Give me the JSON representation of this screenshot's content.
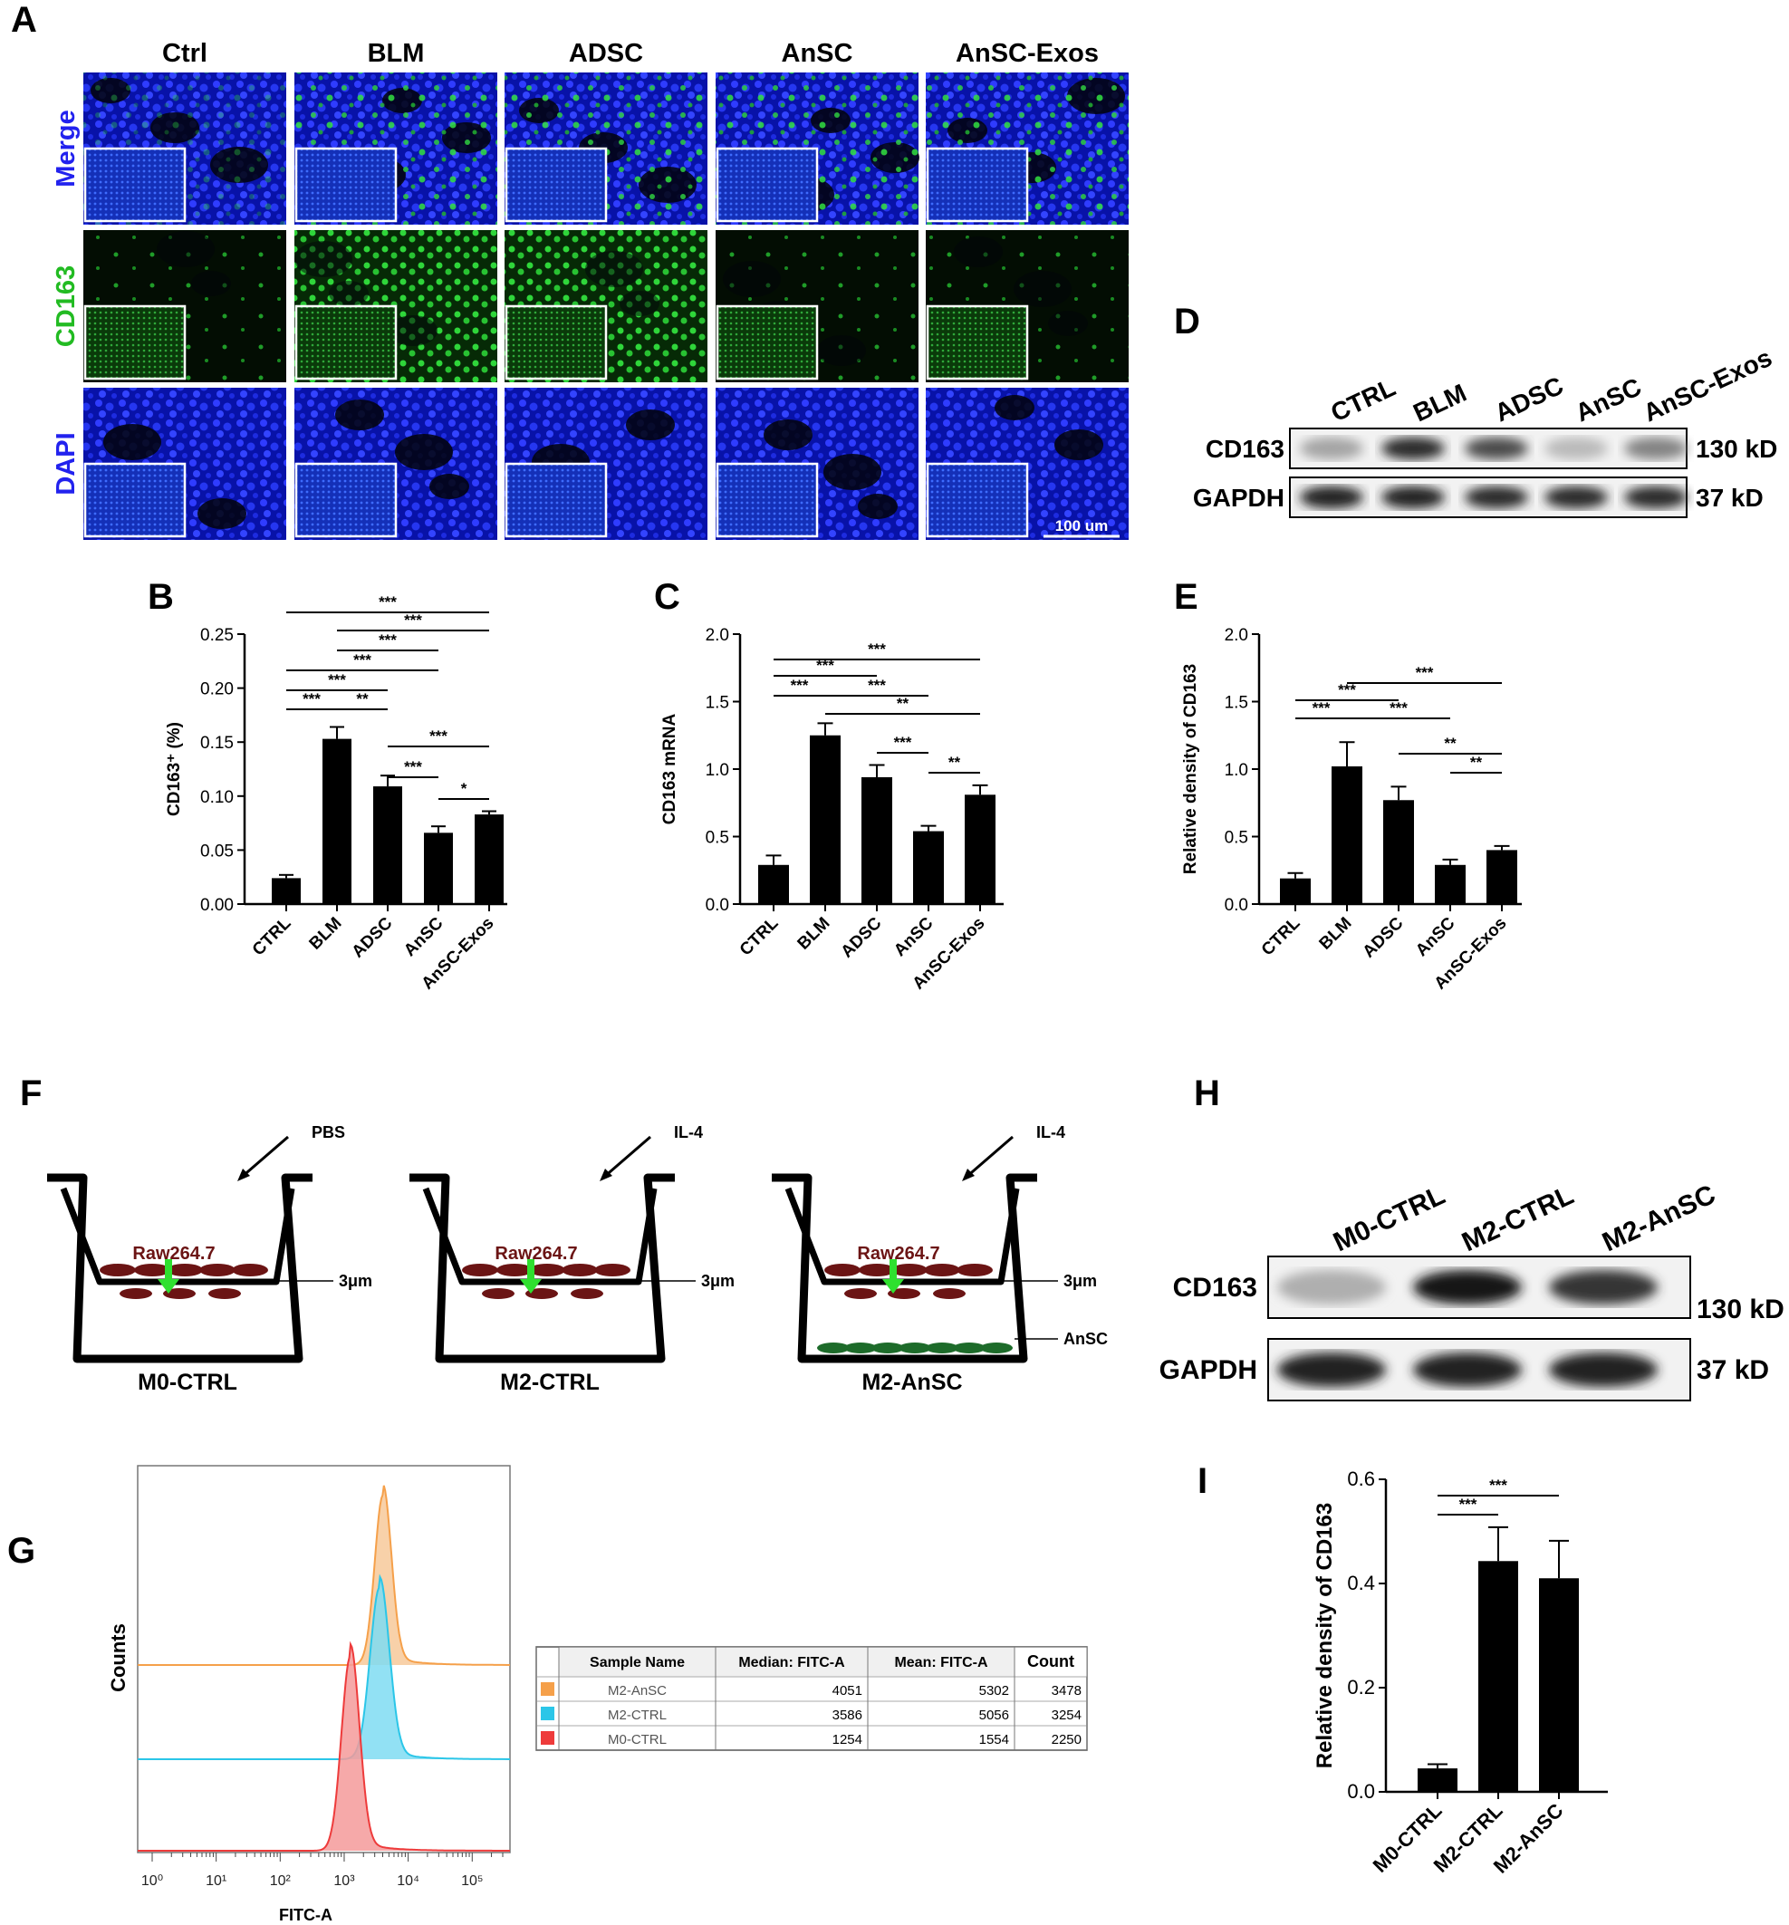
{
  "panel_letters": {
    "A": "A",
    "B": "B",
    "C": "C",
    "D": "D",
    "E": "E",
    "F": "F",
    "G": "G",
    "H": "H",
    "I": "I"
  },
  "microscopy": {
    "columns": [
      "Ctrl",
      "BLM",
      "ADSC",
      "AnSC",
      "AnSC-Exos"
    ],
    "rows": [
      {
        "label": "Merge",
        "color": "#2222ee"
      },
      {
        "label": "CD163",
        "color": "#22bb22"
      },
      {
        "label": "DAPI",
        "color": "#2222ee"
      }
    ],
    "scale_bar": "100 um"
  },
  "western_D": {
    "lanes": [
      "CTRL",
      "BLM",
      "ADSC",
      "AnSC",
      "AnSC-Exos"
    ],
    "rows": [
      {
        "label": "CD163",
        "size": "130 kD",
        "intensity": [
          0.3,
          0.85,
          0.7,
          0.2,
          0.45
        ]
      },
      {
        "label": "GAPDH",
        "size": "37 kD",
        "intensity": [
          0.9,
          0.9,
          0.85,
          0.85,
          0.85
        ]
      }
    ]
  },
  "western_H": {
    "lanes": [
      "M0-CTRL",
      "M2-CTRL",
      "M2-AnSC"
    ],
    "rows": [
      {
        "label": "CD163",
        "size": "130 kD",
        "intensity": [
          0.25,
          0.95,
          0.8
        ]
      },
      {
        "label": "GAPDH",
        "size": "37 kD",
        "intensity": [
          0.9,
          0.9,
          0.9
        ]
      }
    ]
  },
  "transwell": {
    "wells": [
      {
        "name": "M0-CTRL",
        "treatment": "PBS",
        "cell": "Raw264.7",
        "pore": "3μm",
        "lower": ""
      },
      {
        "name": "M2-CTRL",
        "treatment": "IL-4",
        "cell": "Raw264.7",
        "pore": "3μm",
        "lower": ""
      },
      {
        "name": "M2-AnSC",
        "treatment": "IL-4",
        "cell": "Raw264.7",
        "pore": "3μm",
        "lower": "AnSC"
      }
    ]
  },
  "flow_table": {
    "headers": [
      "Sample Name",
      "Median: FITC-A",
      "Mean: FITC-A",
      "Count"
    ],
    "rows": [
      {
        "color": "#f5a04a",
        "name": "M2-AnSC",
        "median": "4051",
        "mean": "5302",
        "count": "3478"
      },
      {
        "color": "#2bc6e8",
        "name": "M2-CTRL",
        "median": "3586",
        "mean": "5056",
        "count": "3254"
      },
      {
        "color": "#ee3b3b",
        "name": "M0-CTRL",
        "median": "1254",
        "mean": "1554",
        "count": "2250"
      }
    ]
  },
  "chart_data": [
    {
      "panel": "B",
      "type": "bar",
      "categories": [
        "CTRL",
        "BLM",
        "ADSC",
        "AnSC",
        "AnSC-Exos"
      ],
      "values": [
        0.024,
        0.153,
        0.109,
        0.066,
        0.083
      ],
      "errors": [
        0.003,
        0.011,
        0.01,
        0.006,
        0.003
      ],
      "ylabel": "CD163⁺ (%)",
      "ylim": [
        0,
        0.25
      ],
      "yticks": [
        "0.00",
        "0.05",
        "0.10",
        "0.15",
        "0.20",
        "0.25"
      ],
      "significance": [
        {
          "from": 0,
          "to": 1,
          "label": "***"
        },
        {
          "from": 1,
          "to": 2,
          "label": "**"
        },
        {
          "from": 3,
          "to": 4,
          "label": "*"
        },
        {
          "from": 2,
          "to": 3,
          "label": "***"
        },
        {
          "from": 2,
          "to": 4,
          "label": "***"
        },
        {
          "from": 0,
          "to": 2,
          "label": "***"
        },
        {
          "from": 0,
          "to": 3,
          "label": "***"
        },
        {
          "from": 1,
          "to": 3,
          "label": "***"
        },
        {
          "from": 1,
          "to": 4,
          "label": "***"
        },
        {
          "from": 0,
          "to": 4,
          "label": "***"
        }
      ]
    },
    {
      "panel": "C",
      "type": "bar",
      "categories": [
        "CTRL",
        "BLM",
        "ADSC",
        "AnSC",
        "AnSC-Exos"
      ],
      "values": [
        0.29,
        1.25,
        0.94,
        0.54,
        0.81
      ],
      "errors": [
        0.07,
        0.09,
        0.09,
        0.04,
        0.07
      ],
      "ylabel": "CD163 mRNA",
      "ylim": [
        0,
        2.0
      ],
      "yticks": [
        "0.0",
        "0.5",
        "1.0",
        "1.5",
        "2.0"
      ],
      "significance": [
        {
          "from": 3,
          "to": 4,
          "label": "**"
        },
        {
          "from": 2,
          "to": 3,
          "label": "***"
        },
        {
          "from": 1,
          "to": 4,
          "label": "**"
        },
        {
          "from": 1,
          "to": 3,
          "label": "***"
        },
        {
          "from": 0,
          "to": 1,
          "label": "***"
        },
        {
          "from": 0,
          "to": 2,
          "label": "***"
        },
        {
          "from": 0,
          "to": 4,
          "label": "***"
        }
      ]
    },
    {
      "panel": "E",
      "type": "bar",
      "categories": [
        "CTRL",
        "BLM",
        "ADSC",
        "AnSC",
        "AnSC-Exos"
      ],
      "values": [
        0.19,
        1.02,
        0.77,
        0.29,
        0.4
      ],
      "errors": [
        0.04,
        0.18,
        0.1,
        0.04,
        0.03
      ],
      "ylabel": "Relative density of CD163",
      "ylim": [
        0,
        2.0
      ],
      "yticks": [
        "0.0",
        "0.5",
        "1.0",
        "1.5",
        "2.0"
      ],
      "significance": [
        {
          "from": 3,
          "to": 4,
          "label": "**"
        },
        {
          "from": 2,
          "to": 4,
          "label": "**"
        },
        {
          "from": 0,
          "to": 1,
          "label": "***"
        },
        {
          "from": 1,
          "to": 3,
          "label": "***"
        },
        {
          "from": 0,
          "to": 2,
          "label": "***"
        },
        {
          "from": 1,
          "to": 4,
          "label": "***"
        }
      ]
    },
    {
      "panel": "I",
      "type": "bar",
      "categories": [
        "M0-CTRL",
        "M2-CTRL",
        "M2-AnSC"
      ],
      "values": [
        0.045,
        0.443,
        0.41
      ],
      "errors": [
        0.008,
        0.065,
        0.072
      ],
      "ylabel": "Relative density of CD163",
      "ylim": [
        0,
        0.6
      ],
      "yticks": [
        "0.0",
        "0.2",
        "0.4",
        "0.6"
      ],
      "significance": [
        {
          "from": 0,
          "to": 1,
          "label": "***"
        },
        {
          "from": 0,
          "to": 2,
          "label": "***"
        }
      ]
    },
    {
      "panel": "G",
      "type": "area",
      "title": "",
      "xlabel": "FITC-A",
      "ylabel": "Counts",
      "xscale": "log",
      "xticks": [
        "10⁰",
        "10¹",
        "10²",
        "10³",
        "10⁴",
        "10⁵"
      ],
      "xlim": [
        1,
        300000
      ],
      "series": [
        {
          "name": "M2-AnSC",
          "peak": 4051,
          "color": "#f5a04a",
          "fill": "#f7c99a"
        },
        {
          "name": "M2-CTRL",
          "peak": 3586,
          "color": "#2bc6e8",
          "fill": "#7fdcf2"
        },
        {
          "name": "M0-CTRL",
          "peak": 1254,
          "color": "#ee3b3b",
          "fill": "#f59a9a"
        }
      ]
    }
  ]
}
